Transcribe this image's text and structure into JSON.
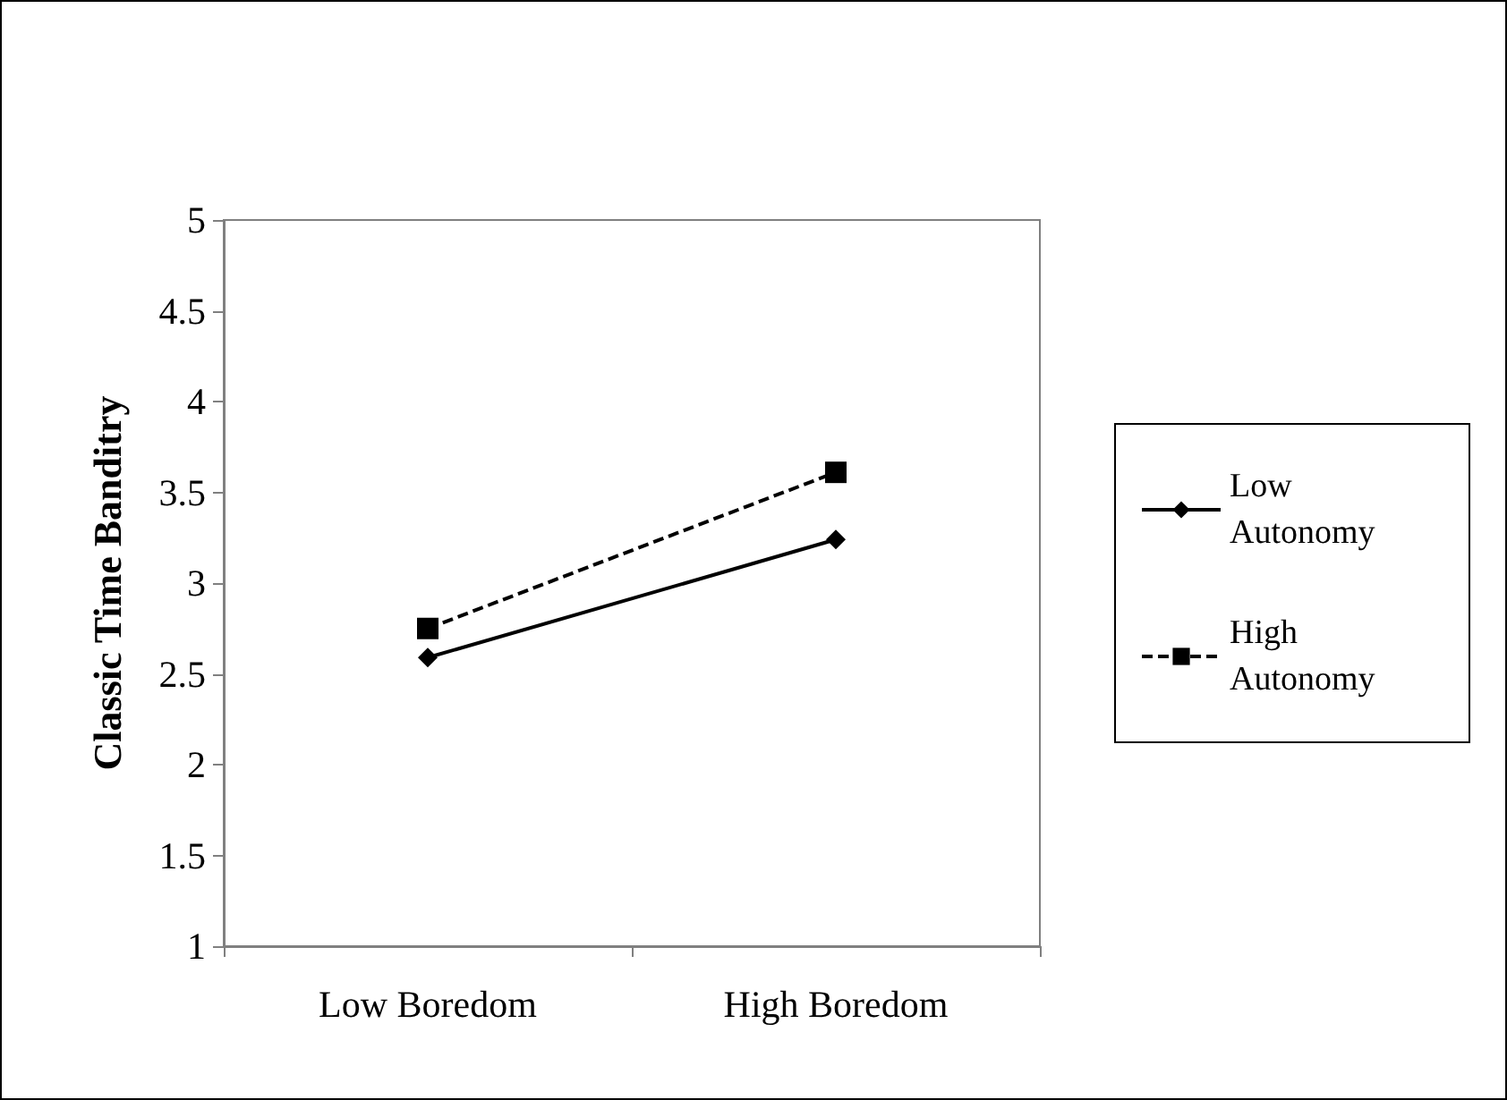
{
  "chart_data": {
    "type": "line",
    "ylabel": "Classic Time Banditry",
    "categories": [
      "Low Boredom",
      "High Boredom"
    ],
    "series": [
      {
        "name": "Low Autonomy",
        "color": "#000000",
        "values": [
          2.59,
          3.24
        ],
        "marker": "diamond",
        "line_style": "solid"
      },
      {
        "name": "High Autonomy",
        "color": "#000000",
        "values": [
          2.75,
          3.61
        ],
        "marker": "square",
        "line_style": "dashed"
      }
    ],
    "ylim": [
      1,
      5
    ],
    "yticks": [
      1,
      1.5,
      2,
      2.5,
      3,
      3.5,
      4,
      4.5,
      5
    ],
    "grid": false,
    "legend": "right"
  }
}
